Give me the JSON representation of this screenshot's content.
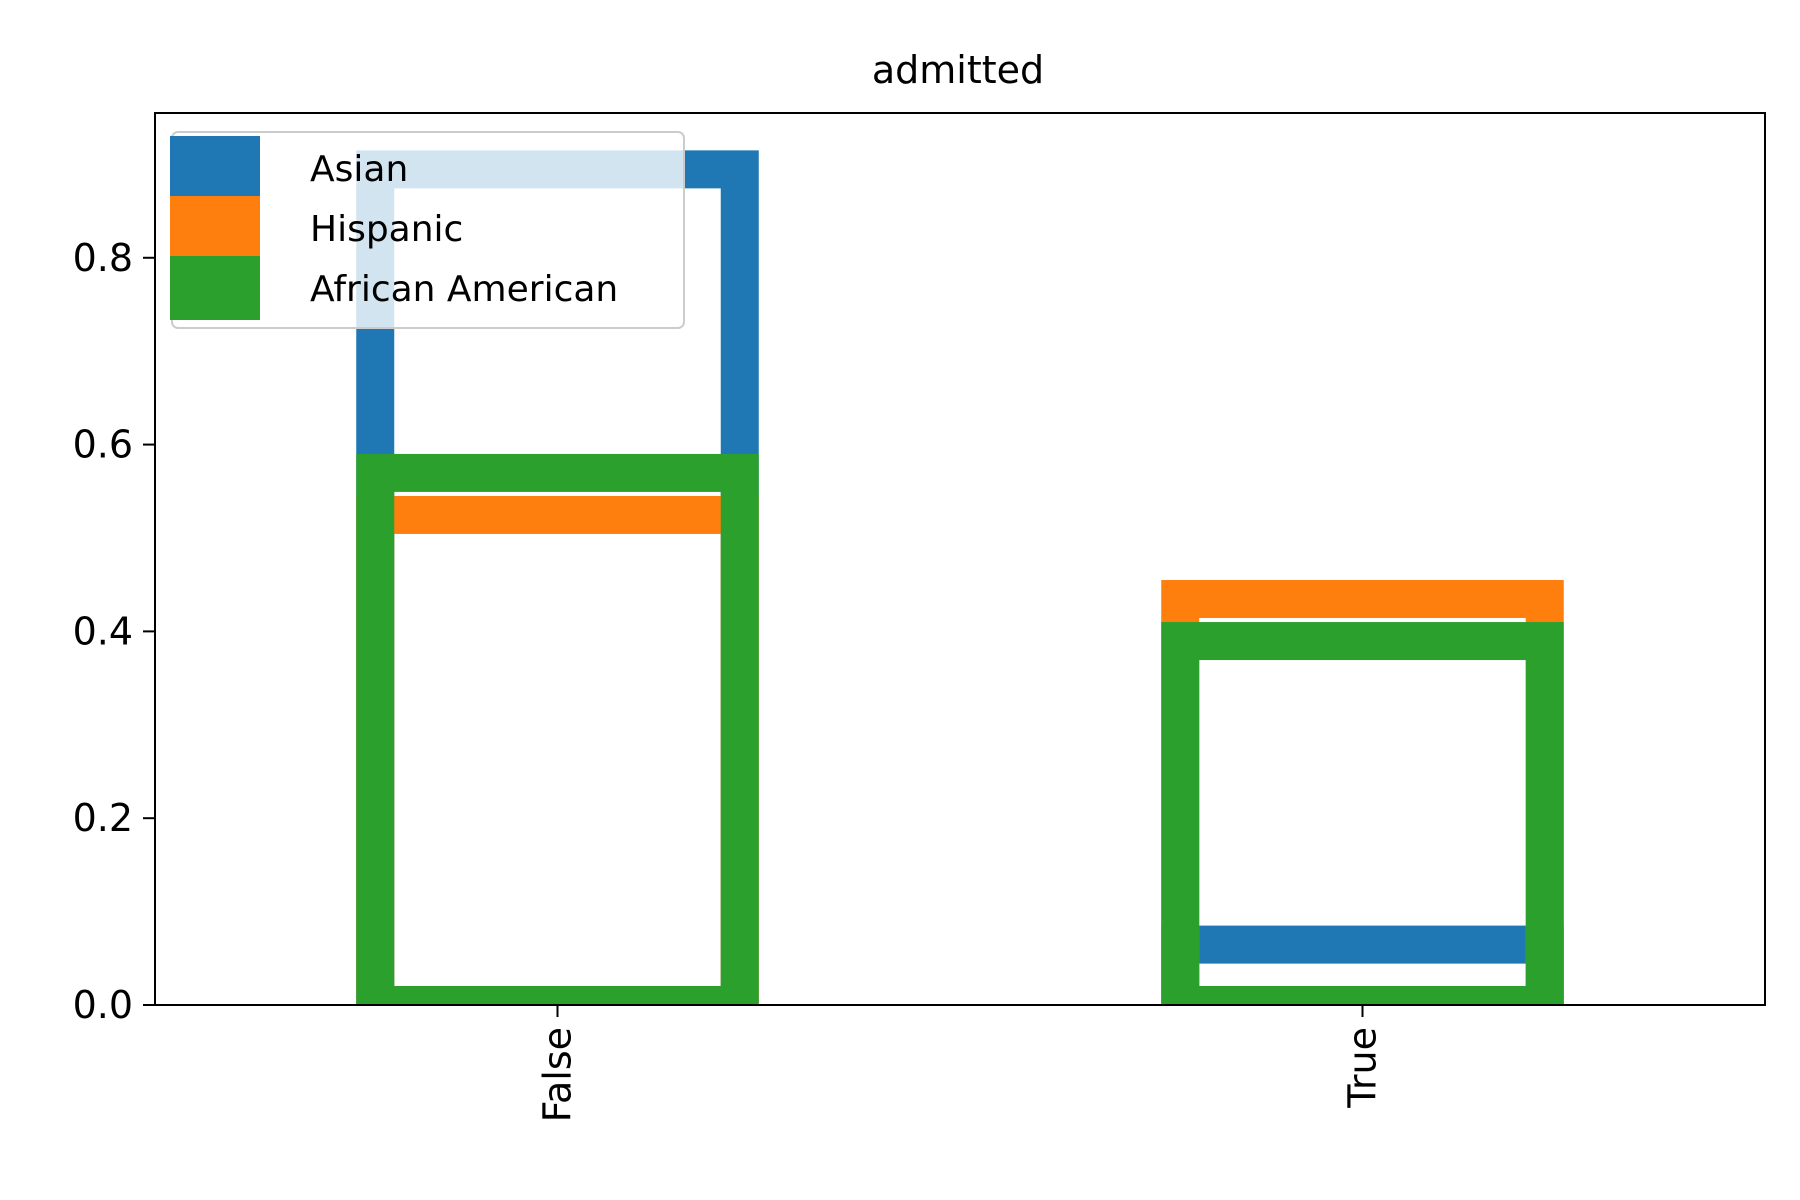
{
  "chart_data": {
    "type": "bar",
    "title": "admitted",
    "xlabel": "",
    "ylabel": "",
    "categories": [
      "False",
      "True"
    ],
    "ylim": [
      0,
      0.955
    ],
    "yticks": [
      0.0,
      0.2,
      0.4,
      0.6,
      0.8
    ],
    "ytick_labels": [
      "0.0",
      "0.2",
      "0.4",
      "0.6",
      "0.8"
    ],
    "grid": false,
    "legend_position": "top-left",
    "bar_style": "unfilled outline (step histogram)",
    "series": [
      {
        "name": "Asian",
        "color": "#1f77b4",
        "values": [
          0.915,
          0.085
        ]
      },
      {
        "name": "Hispanic",
        "color": "#ff7f0e",
        "values": [
          0.545,
          0.455
        ]
      },
      {
        "name": "African American",
        "color": "#2ca02c",
        "values": [
          0.59,
          0.41
        ]
      }
    ]
  }
}
